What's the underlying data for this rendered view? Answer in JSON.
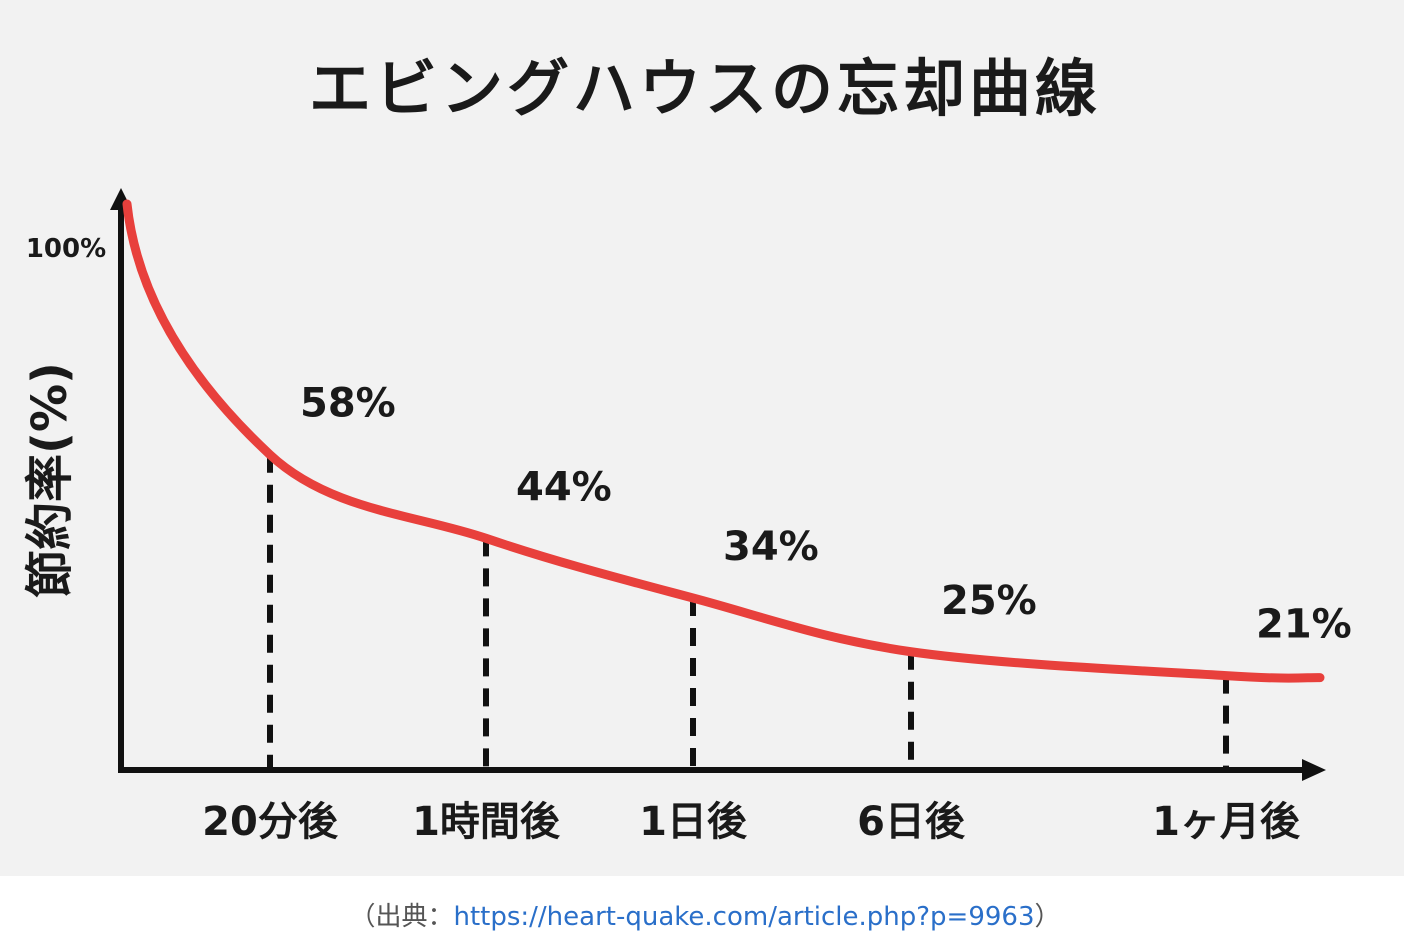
{
  "chart_data": {
    "type": "line",
    "title": "エビングハウスの忘却曲線",
    "ylabel": "節約率(%)",
    "y_top_label": "100%",
    "x": [
      "20分後",
      "1時間後",
      "1日後",
      "6日後",
      "1ヶ月後"
    ],
    "values": [
      58,
      44,
      34,
      25,
      21
    ],
    "value_labels": [
      "58%",
      "44%",
      "34%",
      "25%",
      "21%"
    ],
    "start_value": 100,
    "ylim": [
      0,
      100
    ],
    "grid": false,
    "colors": {
      "curve": "#e8403c",
      "axis": "#111111",
      "text": "#1a1a1a"
    }
  },
  "caption": {
    "prefix": "（出典：",
    "link": "https://heart-quake.com/article.php?p=9963",
    "suffix": "）"
  }
}
